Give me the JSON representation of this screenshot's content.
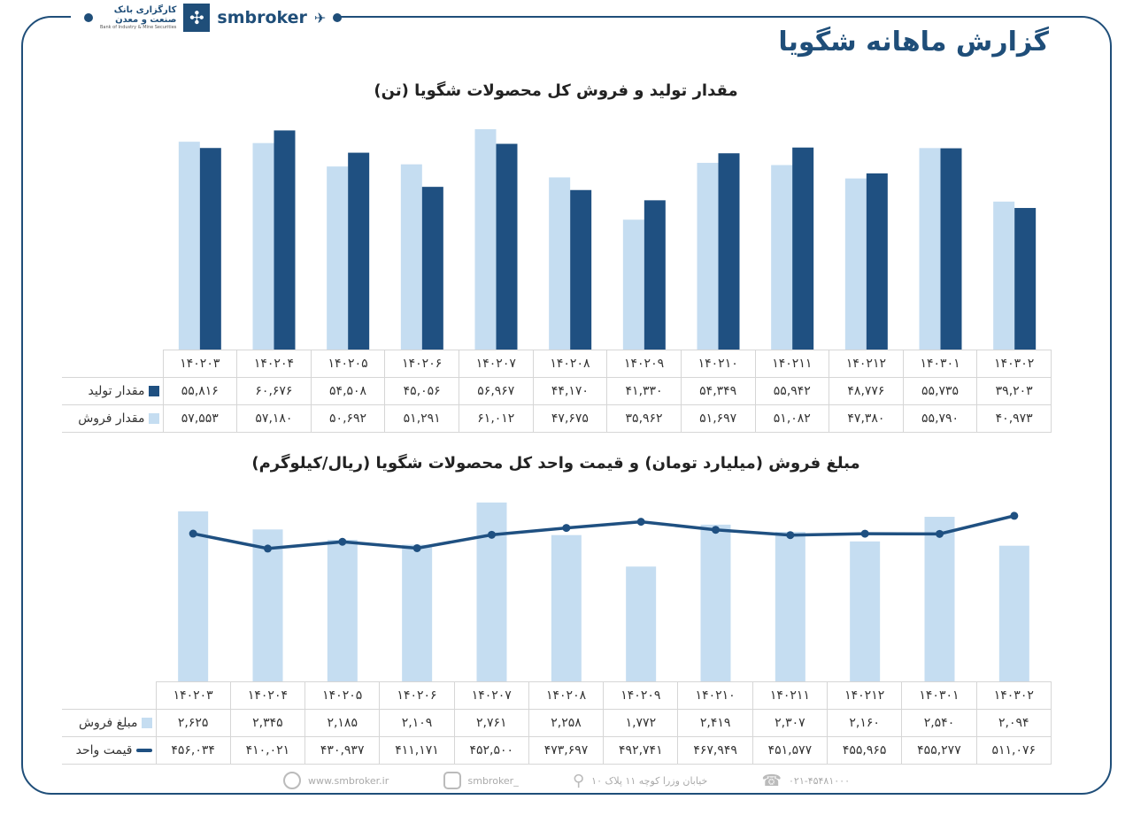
{
  "header": {
    "title": "گزارش ماهانه شگویا",
    "brand": "smbroker",
    "bank_name_line1": "کارگزاری بانک",
    "bank_name_line2": "صنعت و معدن",
    "bank_name_en": "Bank of Industry & Mine Securities"
  },
  "footer": {
    "website": "www.smbroker.ir",
    "instagram": "smbroker_",
    "address": "خیابان وزرا کوچه ۱۱ پلاک ۱۰",
    "phone": "۰۲۱-۴۵۴۸۱۰۰۰"
  },
  "colors": {
    "dark": "#1f5081",
    "light": "#c5ddf1",
    "frame": "#1f4e79"
  },
  "chart_data": [
    {
      "type": "bar",
      "title": "مقدار تولید و فروش کل محصولات شگویا (تن)",
      "categories": [
        "۱۴۰۲۰۳",
        "۱۴۰۲۰۴",
        "۱۴۰۲۰۵",
        "۱۴۰۲۰۶",
        "۱۴۰۲۰۷",
        "۱۴۰۲۰۸",
        "۱۴۰۲۰۹",
        "۱۴۰۲۱۰",
        "۱۴۰۲۱۱",
        "۱۴۰۲۱۲",
        "۱۴۰۳۰۱",
        "۱۴۰۳۰۲"
      ],
      "ylim": [
        0,
        62000
      ],
      "grid": false,
      "legend": "data-table",
      "series": [
        {
          "name": "مقدار تولید",
          "color": "#1f5081",
          "values": [
            55816,
            60676,
            54508,
            45056,
            56967,
            44170,
            41330,
            54349,
            55942,
            48776,
            55735,
            39203
          ]
        },
        {
          "name": "مقدار فروش",
          "color": "#c5ddf1",
          "values": [
            57553,
            57180,
            50692,
            51291,
            61012,
            47675,
            35962,
            51697,
            51082,
            47380,
            55790,
            40973
          ]
        }
      ]
    },
    {
      "type": "bar+line",
      "title": "مبلغ فروش (میلیارد تومان) و قیمت واحد کل محصولات شگویا (ریال/کیلوگرم)",
      "categories": [
        "۱۴۰۲۰۳",
        "۱۴۰۲۰۴",
        "۱۴۰۲۰۵",
        "۱۴۰۲۰۶",
        "۱۴۰۲۰۷",
        "۱۴۰۲۰۸",
        "۱۴۰۲۰۹",
        "۱۴۰۲۱۰",
        "۱۴۰۲۱۱",
        "۱۴۰۲۱۲",
        "۱۴۰۳۰۱",
        "۱۴۰۳۰۲"
      ],
      "grid": false,
      "legend": "data-table",
      "series": [
        {
          "name": "مبلغ فروش",
          "type": "bar",
          "color": "#c5ddf1",
          "ylim": [
            0,
            2800
          ],
          "values": [
            2625,
            2345,
            2185,
            2109,
            2761,
            2258,
            1772,
            2419,
            2307,
            2160,
            2540,
            2094
          ]
        },
        {
          "name": "قیمت واحد",
          "type": "line",
          "color": "#1f5081",
          "ylim": [
            0,
            560000
          ],
          "values": [
            456034,
            410021,
            430937,
            411171,
            452500,
            473697,
            492741,
            467949,
            451577,
            455965,
            455277,
            511076
          ]
        }
      ]
    }
  ]
}
